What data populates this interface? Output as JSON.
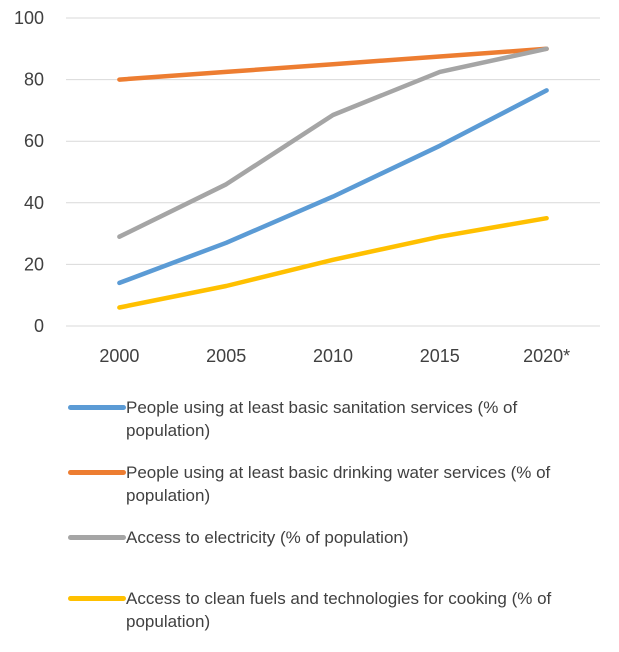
{
  "chart_data": {
    "type": "line",
    "title": "",
    "xlabel": "",
    "ylabel": "",
    "categories": [
      "2000",
      "2005",
      "2010",
      "2015",
      "2020*"
    ],
    "ylim": [
      0,
      100
    ],
    "yticks": [
      "0",
      "20",
      "40",
      "60",
      "80",
      "100"
    ],
    "grid": "horizontal",
    "legend_position": "bottom",
    "series": [
      {
        "name": "People using at least basic sanitation services (% of population)",
        "color": "#5B9BD5",
        "values": [
          14,
          27,
          42,
          58.5,
          76.5
        ]
      },
      {
        "name": "People using at least basic drinking water services (% of population)",
        "color": "#ED7D31",
        "values": [
          80,
          82.5,
          85,
          87.5,
          90
        ]
      },
      {
        "name": "Access to electricity (% of population)",
        "color": "#A5A5A5",
        "values": [
          29,
          46,
          68.5,
          82.5,
          90
        ]
      },
      {
        "name": "Access to clean fuels and technologies for cooking (% of population)",
        "color": "#FFC000",
        "values": [
          6,
          13,
          21.5,
          29,
          35
        ]
      }
    ]
  }
}
